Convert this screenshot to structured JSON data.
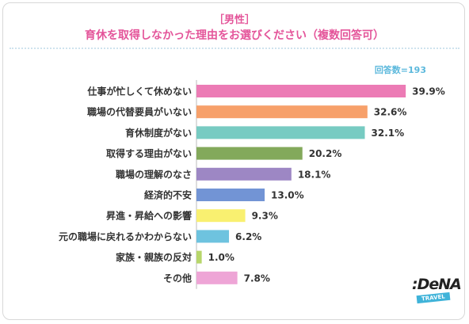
{
  "header": {
    "segment": "［男性］",
    "question": "育休を取得しなかった理由をお選びください（複数回答可）"
  },
  "respondents": "回答数=193",
  "logo": {
    "brand": ":DeNA",
    "sub": "TRAVEL"
  },
  "colors": {
    "title": "#e4559a",
    "count": "#5bb8dc"
  },
  "chart_data": {
    "type": "bar",
    "orientation": "horizontal",
    "unit": "%",
    "categories": [
      "仕事が忙しくて休めない",
      "職場の代替要員がいない",
      "育休制度がない",
      "取得する理由がない",
      "職場の理解のなさ",
      "経済的不安",
      "昇進・昇給への影響",
      "元の職場に戻れるかわからない",
      "家族・親族の反対",
      "その他"
    ],
    "values": [
      39.9,
      32.6,
      32.1,
      20.2,
      18.1,
      13.0,
      9.3,
      6.2,
      1.0,
      7.8
    ],
    "value_labels": [
      "39.9%",
      "32.6%",
      "32.1%",
      "20.2%",
      "18.1%",
      "13.0%",
      "9.3%",
      "6.2%",
      "1.0%",
      "7.8%"
    ],
    "bar_colors": [
      "#ec7bb5",
      "#f7a06a",
      "#77cbc2",
      "#83a95b",
      "#9d87c4",
      "#7294d5",
      "#f9f070",
      "#6ec3df",
      "#b7d66a",
      "#eea5d6"
    ],
    "xlim": [
      0,
      40
    ],
    "grid": false,
    "legend": "none"
  }
}
